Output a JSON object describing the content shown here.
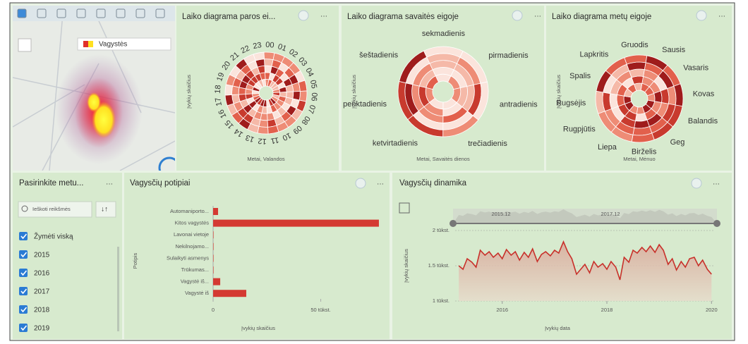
{
  "map": {
    "legend": "Vagystės"
  },
  "radials": [
    {
      "title": "Laiko diagrama paros ei...",
      "y_label": "Įvykių skaičius",
      "x_label": "Metai, Valandos",
      "labels": [
        "00",
        "01",
        "02",
        "03",
        "04",
        "05",
        "06",
        "07",
        "08",
        "09",
        "10",
        "11",
        "12",
        "13",
        "14",
        "15",
        "16",
        "17",
        "18",
        "19",
        "20",
        "21",
        "22",
        "23"
      ]
    },
    {
      "title": "Laiko diagrama savaitės eigoje",
      "y_label": "Įvykių skaičius",
      "x_label": "Metai, Savaitės dienos",
      "labels": [
        "pirmadienis",
        "antradienis",
        "trečiadienis",
        "ketvirtadienis",
        "penktadienis",
        "šeštadienis",
        "sekmadienis"
      ]
    },
    {
      "title": "Laiko diagrama metų eigoje",
      "y_label": "Įvykių skaičius",
      "x_label": "Metai, Mėnuo",
      "labels": [
        "Sausis",
        "Vasaris",
        "Kovas",
        "Balandis",
        "Geg",
        "Birželis",
        "Liepa",
        "Rugpjūtis",
        "Rugsėjis",
        "Spalis",
        "Lapkritis",
        "Gruodis"
      ]
    }
  ],
  "filter": {
    "title": "Pasirinkite metu...",
    "search_placeholder": "Ieškoti reikšmės",
    "select_all": "Žymėti viską",
    "options": [
      "2015",
      "2016",
      "2017",
      "2018",
      "2019"
    ]
  },
  "chart_data": [
    {
      "type": "bar",
      "orientation": "horizontal",
      "title": "Vagysčių potipiai",
      "categories": [
        "Automaniporto...",
        "Kitos vagystės",
        "Lavonai vietoje",
        "Nekilnojamo...",
        "Sulaikyti asmenys",
        "Trūkumas...",
        "Vagystė iš...",
        "Vagystė iš"
      ],
      "values": [
        2300,
        77000,
        200,
        200,
        200,
        200,
        3300,
        15400
      ],
      "color": "#d43a32",
      "xlim": [
        0,
        78000
      ],
      "xticks": [
        0,
        {
          "value": 50000,
          "label": "50 tūkst."
        }
      ],
      "x_label": "Įvykių skaičius",
      "y_label": "Potipis"
    },
    {
      "type": "line",
      "title": "Vagysčių dinamika",
      "x": [
        2015.17,
        2015.25,
        2015.33,
        2015.42,
        2015.5,
        2015.58,
        2015.67,
        2015.75,
        2015.83,
        2015.92,
        2016.0,
        2016.08,
        2016.17,
        2016.25,
        2016.33,
        2016.42,
        2016.5,
        2016.58,
        2016.67,
        2016.75,
        2016.83,
        2016.92,
        2017.0,
        2017.08,
        2017.17,
        2017.25,
        2017.33,
        2017.42,
        2017.5,
        2017.58,
        2017.67,
        2017.75,
        2017.83,
        2017.92,
        2018.0,
        2018.08,
        2018.17,
        2018.25,
        2018.33,
        2018.42,
        2018.5,
        2018.58,
        2018.67,
        2018.75,
        2018.83,
        2018.92,
        2019.0,
        2019.08,
        2019.17,
        2019.25,
        2019.33,
        2019.42,
        2019.5,
        2019.58,
        2019.67,
        2019.75,
        2019.83,
        2019.92,
        2020.0
      ],
      "values": [
        1500,
        1450,
        1600,
        1550,
        1480,
        1720,
        1650,
        1700,
        1620,
        1680,
        1600,
        1730,
        1650,
        1700,
        1580,
        1690,
        1620,
        1740,
        1560,
        1660,
        1700,
        1640,
        1720,
        1680,
        1840,
        1700,
        1600,
        1380,
        1450,
        1520,
        1400,
        1560,
        1480,
        1530,
        1450,
        1560,
        1480,
        1300,
        1620,
        1550,
        1720,
        1680,
        1760,
        1700,
        1780,
        1690,
        1800,
        1720,
        1520,
        1600,
        1440,
        1560,
        1480,
        1600,
        1620,
        1500,
        1580,
        1450,
        1380
      ],
      "color": "#c8302a",
      "xlim": [
        2015.1,
        2020.05
      ],
      "xticks": [
        2016,
        2018,
        2020
      ],
      "ylim": [
        1000,
        2000
      ],
      "yticks": [
        {
          "value": 1000,
          "label": "1 tūkst."
        },
        {
          "value": 1500,
          "label": "1.5 tūkst."
        },
        {
          "value": 2000,
          "label": "2 tūkst."
        }
      ],
      "grid": true,
      "range_labels": [
        "2015.12",
        "2017.12"
      ],
      "x_label": "Įvykių data",
      "y_label": "Įvykių skaičius"
    }
  ]
}
